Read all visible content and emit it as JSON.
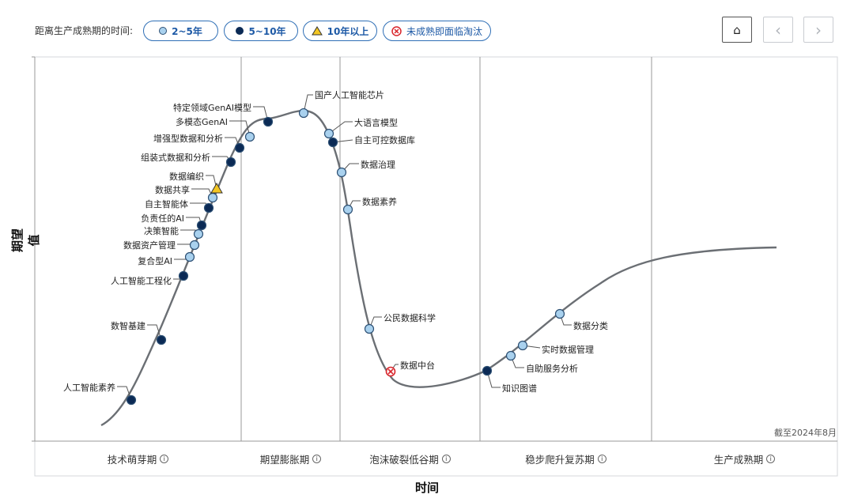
{
  "legend": {
    "title": "距离生产成熟期的时间:",
    "items": [
      {
        "label": "2~5年",
        "icon": "light-blue-circle-icon",
        "color": "#a9d1ee"
      },
      {
        "label": "5~10年",
        "icon": "dark-navy-circle-icon",
        "color": "#0b2a55"
      },
      {
        "label": "10年以上",
        "icon": "yellow-triangle-icon",
        "color": "#f3c623"
      },
      {
        "label": "未成熟即面临淘汰",
        "icon": "red-x-circle-icon",
        "color": "#d9262c"
      }
    ]
  },
  "nav": {
    "home_icon": "⌂",
    "prev_icon": "‹",
    "next_icon": "›"
  },
  "axis": {
    "ylabel": "期望值",
    "xlabel": "时间"
  },
  "as_of": "截至2024年8月",
  "phases": [
    {
      "label": "技术萌芽期",
      "info": "i"
    },
    {
      "label": "期望膨胀期",
      "info": "i"
    },
    {
      "label": "泡沫破裂低谷期",
      "info": "i"
    },
    {
      "label": "稳步爬升复苏期",
      "info": "i"
    },
    {
      "label": "生产成熟期",
      "info": "i"
    }
  ],
  "chart_data": {
    "type": "scatter",
    "colors": {
      "2-5": "#a9d1ee",
      "5-10": "#0b2a55",
      "10+": "#f3c623",
      "obsolete": "#d9262c"
    },
    "points": [
      {
        "label": "人工智能素养",
        "cat": "5-10"
      },
      {
        "label": "数智基建",
        "cat": "5-10"
      },
      {
        "label": "人工智能工程化",
        "cat": "5-10"
      },
      {
        "label": "复合型AI",
        "cat": "2-5"
      },
      {
        "label": "数据资产管理",
        "cat": "2-5"
      },
      {
        "label": "决策智能",
        "cat": "2-5"
      },
      {
        "label": "负责任的AI",
        "cat": "5-10"
      },
      {
        "label": "自主智能体",
        "cat": "5-10"
      },
      {
        "label": "数据共享",
        "cat": "2-5"
      },
      {
        "label": "数据编织",
        "cat": "10+"
      },
      {
        "label": "组装式数据和分析",
        "cat": "5-10"
      },
      {
        "label": "增强型数据和分析",
        "cat": "5-10"
      },
      {
        "label": "多模态GenAI",
        "cat": "2-5"
      },
      {
        "label": "特定领域GenAI模型",
        "cat": "5-10"
      },
      {
        "label": "国产人工智能芯片",
        "cat": "2-5"
      },
      {
        "label": "大语言模型",
        "cat": "2-5"
      },
      {
        "label": "自主可控数据库",
        "cat": "5-10"
      },
      {
        "label": "数据治理",
        "cat": "2-5"
      },
      {
        "label": "数据素养",
        "cat": "2-5"
      },
      {
        "label": "公民数据科学",
        "cat": "2-5"
      },
      {
        "label": "数据中台",
        "cat": "obsolete"
      },
      {
        "label": "知识图谱",
        "cat": "5-10"
      },
      {
        "label": "自助服务分析",
        "cat": "2-5"
      },
      {
        "label": "实时数据管理",
        "cat": "2-5"
      },
      {
        "label": "数据分类",
        "cat": "2-5"
      }
    ]
  }
}
